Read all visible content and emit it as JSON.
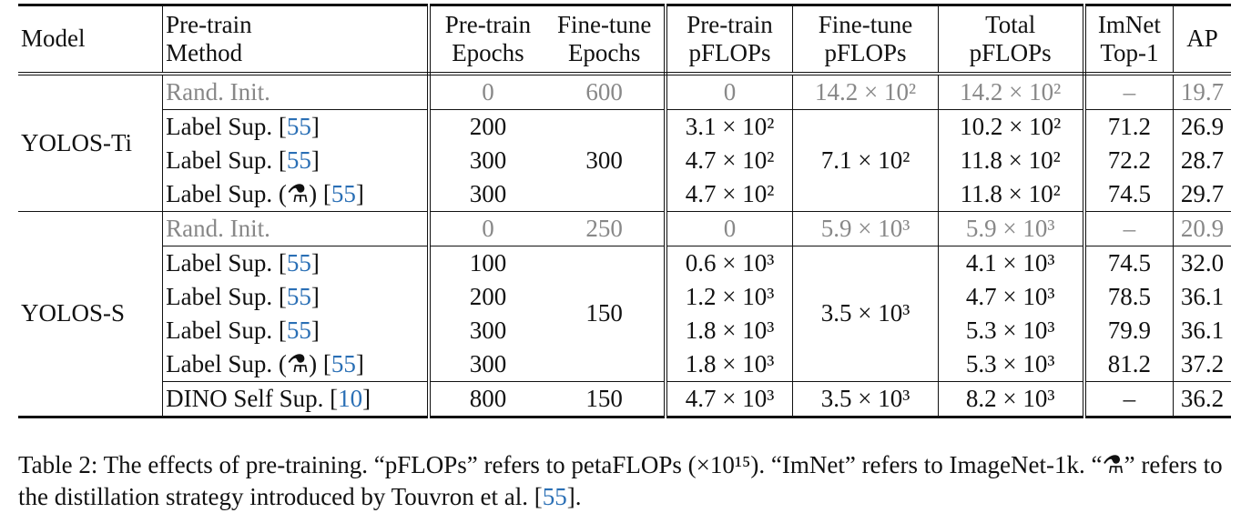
{
  "table": {
    "header": [
      [
        "Model"
      ],
      [
        "Pre-train",
        "Method"
      ],
      [
        "Pre-train",
        "Epochs"
      ],
      [
        "Fine-tune",
        "Epochs"
      ],
      [
        "Pre-train",
        "pFLOPs"
      ],
      [
        "Fine-tune",
        "pFLOPs"
      ],
      [
        "Total",
        "pFLOPs"
      ],
      [
        "ImNet",
        "Top-1"
      ],
      [
        "AP"
      ]
    ],
    "groups": [
      {
        "model": "YOLOS-Ti",
        "blocks": [
          {
            "ft_epochs": "600",
            "ft_pflops": "14.2 × 10²",
            "rows": [
              {
                "method": "Rand. Init.",
                "pt_epochs": "0",
                "pt_pflops": "0",
                "total_pflops": "14.2 × 10²",
                "top1": "–",
                "ap": "19.7"
              }
            ]
          },
          {
            "ft_epochs": "300",
            "ft_pflops": "7.1 × 10²",
            "rows": [
              {
                "method": "Label Sup. [55]",
                "pt_epochs": "200",
                "pt_pflops": "3.1 × 10²",
                "total_pflops": "10.2 × 10²",
                "top1": "71.2",
                "ap": "26.9"
              },
              {
                "method": "Label Sup. [55]",
                "pt_epochs": "300",
                "pt_pflops": "4.7 × 10²",
                "total_pflops": "11.8 × 10²",
                "top1": "72.2",
                "ap": "28.7"
              },
              {
                "method": "Label Sup. (⚗) [55]",
                "pt_epochs": "300",
                "pt_pflops": "4.7 × 10²",
                "total_pflops": "11.8 × 10²",
                "top1": "74.5",
                "ap": "29.7"
              }
            ]
          }
        ]
      },
      {
        "model": "YOLOS-S",
        "blocks": [
          {
            "ft_epochs": "250",
            "ft_pflops": "5.9 × 10³",
            "rows": [
              {
                "method": "Rand. Init.",
                "pt_epochs": "0",
                "pt_pflops": "0",
                "total_pflops": "5.9 × 10³",
                "top1": "–",
                "ap": "20.9"
              }
            ]
          },
          {
            "ft_epochs": "150",
            "ft_pflops": "3.5 × 10³",
            "rows": [
              {
                "method": "Label Sup. [55]",
                "pt_epochs": "100",
                "pt_pflops": "0.6 × 10³",
                "total_pflops": "4.1 × 10³",
                "top1": "74.5",
                "ap": "32.0"
              },
              {
                "method": "Label Sup. [55]",
                "pt_epochs": "200",
                "pt_pflops": "1.2 × 10³",
                "total_pflops": "4.7 × 10³",
                "top1": "78.5",
                "ap": "36.1"
              },
              {
                "method": "Label Sup. [55]",
                "pt_epochs": "300",
                "pt_pflops": "1.8 × 10³",
                "total_pflops": "5.3 × 10³",
                "top1": "79.9",
                "ap": "36.1"
              },
              {
                "method": "Label Sup. (⚗) [55]",
                "pt_epochs": "300",
                "pt_pflops": "1.8 × 10³",
                "total_pflops": "5.3 × 10³",
                "top1": "81.2",
                "ap": "37.2"
              }
            ]
          },
          {
            "ft_epochs": "150",
            "ft_pflops": "3.5 × 10³",
            "rows": [
              {
                "method": "DINO Self Sup. [10]",
                "pt_epochs": "800",
                "pt_pflops": "4.7 × 10³",
                "total_pflops": "8.2 × 10³",
                "top1": "–",
                "ap": "36.2"
              }
            ]
          }
        ]
      }
    ]
  },
  "caption": "Table 2: The effects of pre-training. “pFLOPs” refers to petaFLOPs (×10¹⁵). “ImNet” refers to ImageNet-1k. “⚗” refers to the distillation strategy introduced by Touvron et al. [55]."
}
